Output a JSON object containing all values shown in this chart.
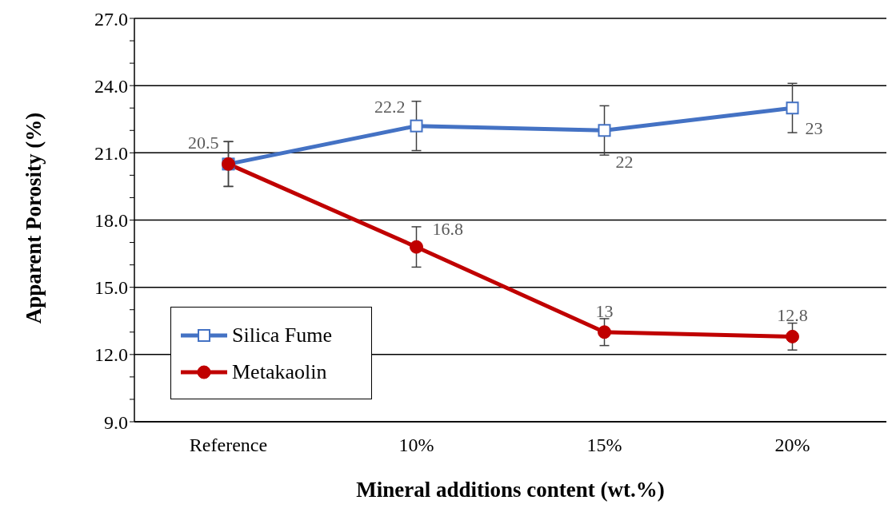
{
  "chart_data": {
    "type": "line",
    "xlabel": "Mineral additions content (wt.%)",
    "ylabel": "Apparent Porosity (%)",
    "categories": [
      "Reference",
      "10%",
      "15%",
      "20%"
    ],
    "series": [
      {
        "name": "Silica Fume",
        "color": "#4472c4",
        "marker": "square",
        "values": [
          20.5,
          22.2,
          22,
          23
        ],
        "errors": [
          1,
          1.1,
          1.1,
          1.1
        ],
        "value_labels": [
          "20.5",
          "22.2",
          "22",
          "23"
        ]
      },
      {
        "name": "Metakaolin",
        "color": "#c00000",
        "marker": "circle",
        "values": [
          20.5,
          16.8,
          13,
          12.8
        ],
        "errors": [
          1,
          0.9,
          0.6,
          0.6
        ],
        "value_labels": [
          null,
          "16.8",
          "13",
          "12.8"
        ]
      }
    ],
    "ylim": [
      9,
      27
    ],
    "yticks": [
      {
        "value": 9,
        "label": "9.0"
      },
      {
        "value": 10,
        "label": null
      },
      {
        "value": 11,
        "label": null
      },
      {
        "value": 12,
        "label": "12.0"
      },
      {
        "value": 13,
        "label": null
      },
      {
        "value": 14,
        "label": null
      },
      {
        "value": 15,
        "label": "15.0"
      },
      {
        "value": 16,
        "label": null
      },
      {
        "value": 17,
        "label": null
      },
      {
        "value": 18,
        "label": "18.0"
      },
      {
        "value": 19,
        "label": null
      },
      {
        "value": 20,
        "label": null
      },
      {
        "value": 21,
        "label": "21.0"
      },
      {
        "value": 22,
        "label": null
      },
      {
        "value": 23,
        "label": null
      },
      {
        "value": 24,
        "label": "24.0"
      },
      {
        "value": 25,
        "label": null
      },
      {
        "value": 26,
        "label": null
      },
      {
        "value": 27,
        "label": "27.0"
      }
    ],
    "grid": "y",
    "legend": "bottom left",
    "line_style": "solid"
  }
}
